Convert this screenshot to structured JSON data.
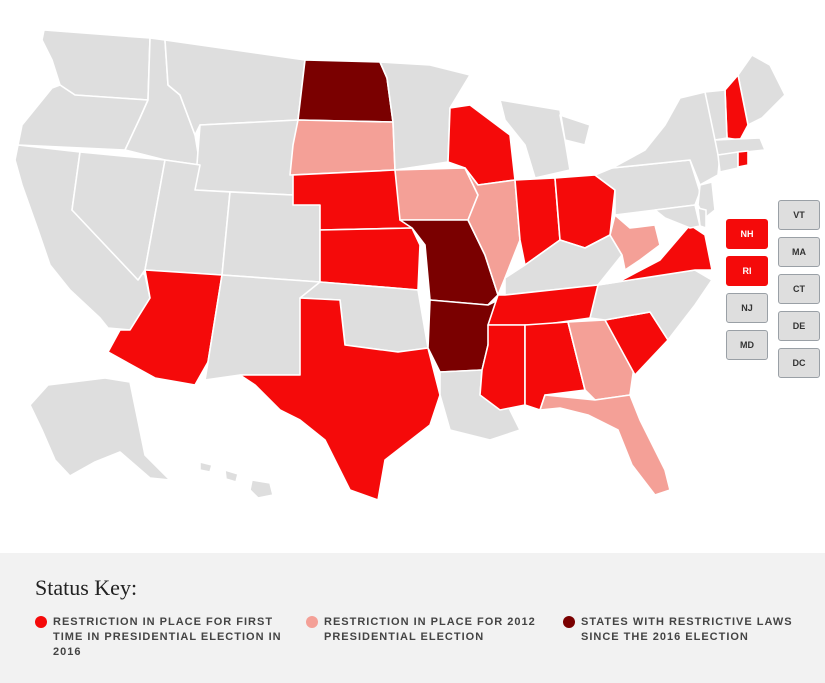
{
  "colors": {
    "none": "#dedede",
    "first_time_2016": "#f50a0a",
    "since_2012": "#f4a097",
    "since_2016_election": "#7a0000"
  },
  "map": {
    "states": [
      {
        "id": "WA",
        "status": "none"
      },
      {
        "id": "OR",
        "status": "none"
      },
      {
        "id": "CA",
        "status": "none"
      },
      {
        "id": "NV",
        "status": "none"
      },
      {
        "id": "ID",
        "status": "none"
      },
      {
        "id": "MT",
        "status": "none"
      },
      {
        "id": "WY",
        "status": "none"
      },
      {
        "id": "UT",
        "status": "none"
      },
      {
        "id": "AZ",
        "status": "first_time_2016"
      },
      {
        "id": "CO",
        "status": "none"
      },
      {
        "id": "NM",
        "status": "none"
      },
      {
        "id": "ND",
        "status": "since_2016_election"
      },
      {
        "id": "SD",
        "status": "since_2012"
      },
      {
        "id": "NE",
        "status": "first_time_2016"
      },
      {
        "id": "KS",
        "status": "first_time_2016"
      },
      {
        "id": "OK",
        "status": "none"
      },
      {
        "id": "TX",
        "status": "first_time_2016"
      },
      {
        "id": "MN",
        "status": "none"
      },
      {
        "id": "IA",
        "status": "since_2012"
      },
      {
        "id": "MO",
        "status": "since_2016_election"
      },
      {
        "id": "AR",
        "status": "since_2016_election"
      },
      {
        "id": "LA",
        "status": "none"
      },
      {
        "id": "WI",
        "status": "first_time_2016"
      },
      {
        "id": "IL",
        "status": "since_2012"
      },
      {
        "id": "MI",
        "status": "none"
      },
      {
        "id": "IN",
        "status": "first_time_2016"
      },
      {
        "id": "OH",
        "status": "first_time_2016"
      },
      {
        "id": "KY",
        "status": "none"
      },
      {
        "id": "TN",
        "status": "first_time_2016"
      },
      {
        "id": "MS",
        "status": "first_time_2016"
      },
      {
        "id": "AL",
        "status": "first_time_2016"
      },
      {
        "id": "GA",
        "status": "since_2012"
      },
      {
        "id": "FL",
        "status": "since_2012"
      },
      {
        "id": "SC",
        "status": "first_time_2016"
      },
      {
        "id": "NC",
        "status": "none"
      },
      {
        "id": "VA",
        "status": "first_time_2016"
      },
      {
        "id": "WV",
        "status": "since_2012"
      },
      {
        "id": "PA",
        "status": "none"
      },
      {
        "id": "NY",
        "status": "none"
      },
      {
        "id": "ME",
        "status": "none"
      },
      {
        "id": "NH",
        "status": "first_time_2016"
      },
      {
        "id": "VT",
        "status": "none"
      },
      {
        "id": "MA",
        "status": "none"
      },
      {
        "id": "CT",
        "status": "none"
      },
      {
        "id": "RI",
        "status": "first_time_2016"
      },
      {
        "id": "NJ",
        "status": "none"
      },
      {
        "id": "DE",
        "status": "none"
      },
      {
        "id": "MD",
        "status": "none"
      },
      {
        "id": "AK",
        "status": "none"
      },
      {
        "id": "HI",
        "status": "none"
      }
    ]
  },
  "small_state_boxes": [
    {
      "label": "NH",
      "status": "first_time_2016"
    },
    {
      "label": "RI",
      "status": "first_time_2016"
    },
    {
      "label": "NJ",
      "status": "none"
    },
    {
      "label": "MD",
      "status": "none"
    },
    {
      "label": "VT",
      "status": "none"
    },
    {
      "label": "MA",
      "status": "none"
    },
    {
      "label": "CT",
      "status": "none"
    },
    {
      "label": "DE",
      "status": "none"
    },
    {
      "label": "DC",
      "status": "none"
    }
  ],
  "legend": {
    "title": "Status Key:",
    "items": [
      {
        "label": "RESTRICTION IN PLACE FOR FIRST TIME IN PRESIDENTIAL ELECTION IN 2016",
        "status": "first_time_2016"
      },
      {
        "label": "RESTRICTION IN PLACE FOR 2012 PRESIDENTIAL ELECTION",
        "status": "since_2012"
      },
      {
        "label": "STATES WITH RESTRICTIVE LAWS SINCE THE 2016 ELECTION",
        "status": "since_2016_election"
      }
    ]
  }
}
